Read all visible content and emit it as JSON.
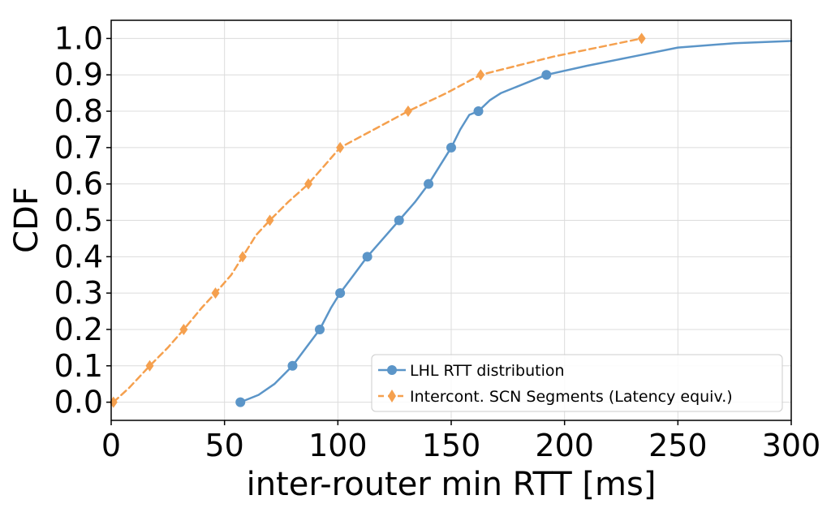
{
  "chart_data": {
    "type": "line",
    "title": "",
    "xlabel": "inter-router min RTT [ms]",
    "ylabel": "CDF",
    "xlim": [
      0,
      300
    ],
    "ylim": [
      -0.05,
      1.05
    ],
    "xticks": [
      0,
      50,
      100,
      150,
      200,
      250,
      300
    ],
    "xtick_labels": [
      "0",
      "50",
      "100",
      "150",
      "200",
      "250",
      "300"
    ],
    "yticks": [
      0.0,
      0.1,
      0.2,
      0.3,
      0.4,
      0.5,
      0.6,
      0.7,
      0.8,
      0.9,
      1.0
    ],
    "ytick_labels": [
      "0.0",
      "0.1",
      "0.2",
      "0.3",
      "0.4",
      "0.5",
      "0.6",
      "0.7",
      "0.8",
      "0.9",
      "1.0"
    ],
    "grid": true,
    "legend_position": "bottom-right",
    "series": [
      {
        "name": "LHL RTT distribution",
        "color": "#5b95c8",
        "line_style": "solid",
        "marker": "circle",
        "line": [
          [
            57,
            0.0
          ],
          [
            65,
            0.02
          ],
          [
            72,
            0.05
          ],
          [
            80,
            0.1
          ],
          [
            86,
            0.15
          ],
          [
            92,
            0.2
          ],
          [
            97,
            0.26
          ],
          [
            101,
            0.3
          ],
          [
            107,
            0.35
          ],
          [
            113,
            0.4
          ],
          [
            120,
            0.45
          ],
          [
            127,
            0.5
          ],
          [
            134,
            0.55
          ],
          [
            140,
            0.6
          ],
          [
            145,
            0.65
          ],
          [
            150,
            0.7
          ],
          [
            154,
            0.75
          ],
          [
            158,
            0.79
          ],
          [
            162,
            0.8
          ],
          [
            167,
            0.83
          ],
          [
            172,
            0.85
          ],
          [
            180,
            0.87
          ],
          [
            192,
            0.9
          ],
          [
            210,
            0.925
          ],
          [
            230,
            0.95
          ],
          [
            250,
            0.975
          ],
          [
            275,
            0.987
          ],
          [
            300,
            0.993
          ]
        ],
        "markers": [
          [
            57,
            0.0
          ],
          [
            80,
            0.1
          ],
          [
            92,
            0.2
          ],
          [
            101,
            0.3
          ],
          [
            113,
            0.4
          ],
          [
            127,
            0.5
          ],
          [
            140,
            0.6
          ],
          [
            150,
            0.7
          ],
          [
            162,
            0.8
          ],
          [
            192,
            0.9
          ]
        ]
      },
      {
        "name": "Intercont. SCN Segments (Latency equiv.)",
        "color": "#f5a04e",
        "line_style": "dashed",
        "marker": "diamond",
        "line": [
          [
            1,
            0.0
          ],
          [
            8,
            0.04
          ],
          [
            17,
            0.1
          ],
          [
            25,
            0.15
          ],
          [
            32,
            0.2
          ],
          [
            40,
            0.26
          ],
          [
            46,
            0.3
          ],
          [
            53,
            0.35
          ],
          [
            58,
            0.4
          ],
          [
            64,
            0.46
          ],
          [
            70,
            0.5
          ],
          [
            78,
            0.55
          ],
          [
            87,
            0.6
          ],
          [
            94,
            0.65
          ],
          [
            101,
            0.7
          ],
          [
            116,
            0.75
          ],
          [
            131,
            0.8
          ],
          [
            148,
            0.85
          ],
          [
            163,
            0.9
          ],
          [
            195,
            0.95
          ],
          [
            234,
            1.0
          ]
        ],
        "markers": [
          [
            1,
            0.0
          ],
          [
            17,
            0.1
          ],
          [
            32,
            0.2
          ],
          [
            46,
            0.3
          ],
          [
            58,
            0.4
          ],
          [
            70,
            0.5
          ],
          [
            87,
            0.6
          ],
          [
            101,
            0.7
          ],
          [
            131,
            0.8
          ],
          [
            163,
            0.9
          ],
          [
            234,
            1.0
          ]
        ]
      }
    ]
  }
}
